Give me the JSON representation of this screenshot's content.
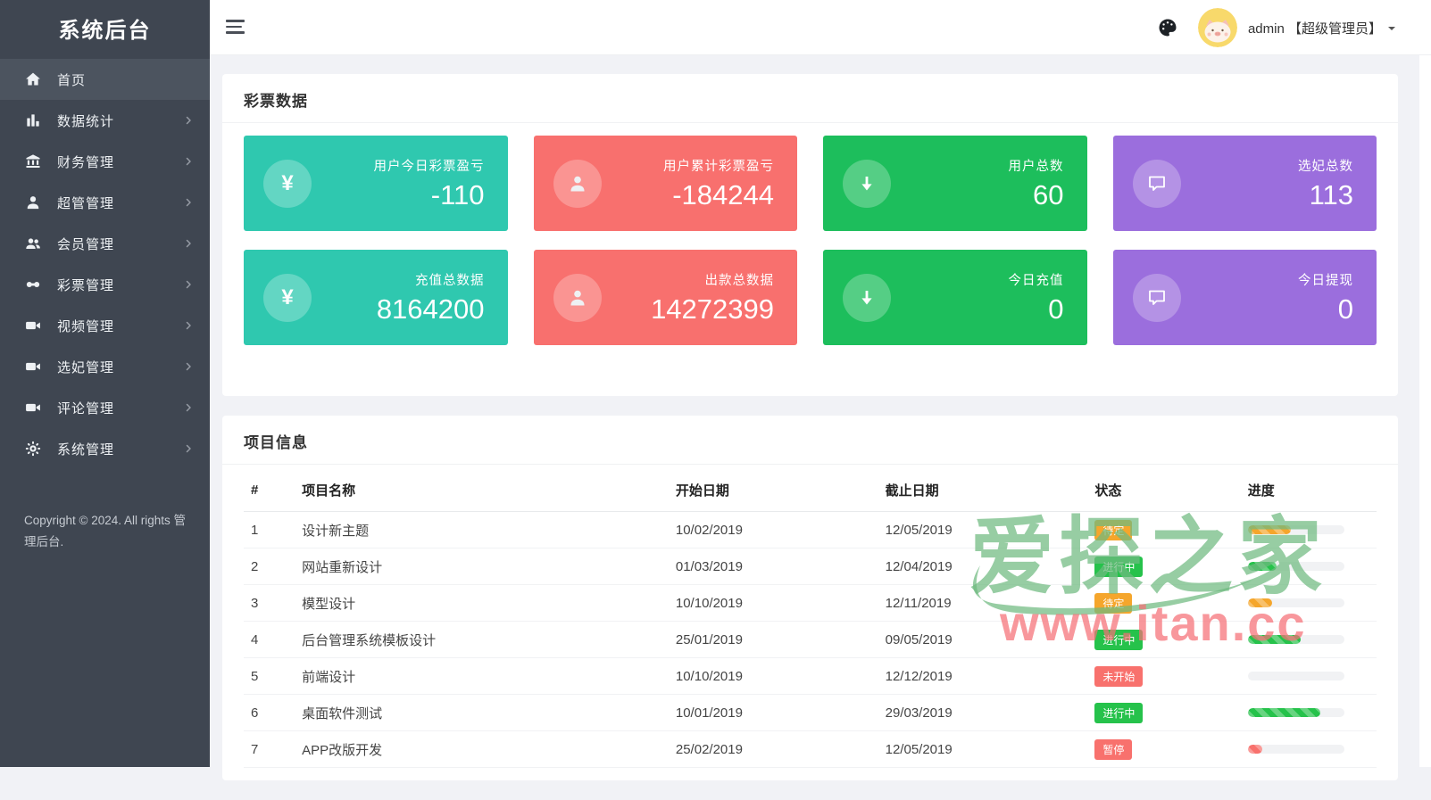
{
  "app": {
    "title": "系统后台"
  },
  "topbar": {
    "user_label": "admin 【超级管理员】",
    "menu_icon": "hamburger",
    "theme_icon": "palette"
  },
  "sidebar": {
    "items": [
      {
        "key": "home",
        "label": "首页",
        "icon": "home",
        "active": true,
        "has_children": false
      },
      {
        "key": "stats",
        "label": "数据统计",
        "icon": "chart",
        "active": false,
        "has_children": true
      },
      {
        "key": "finance",
        "label": "财务管理",
        "icon": "bank",
        "active": false,
        "has_children": true
      },
      {
        "key": "super-admin",
        "label": "超管管理",
        "icon": "user",
        "active": false,
        "has_children": true
      },
      {
        "key": "members",
        "label": "会员管理",
        "icon": "users",
        "active": false,
        "has_children": true
      },
      {
        "key": "lottery",
        "label": "彩票管理",
        "icon": "gamepad",
        "active": false,
        "has_children": true
      },
      {
        "key": "video",
        "label": "视频管理",
        "icon": "video",
        "active": false,
        "has_children": true
      },
      {
        "key": "consort",
        "label": "选妃管理",
        "icon": "video",
        "active": false,
        "has_children": true
      },
      {
        "key": "comments",
        "label": "评论管理",
        "icon": "video",
        "active": false,
        "has_children": true
      },
      {
        "key": "system",
        "label": "系统管理",
        "icon": "gear",
        "active": false,
        "has_children": true
      }
    ],
    "copyright": "Copyright © 2024. All rights 管理后台."
  },
  "lottery_panel": {
    "title": "彩票数据",
    "cards": [
      {
        "key": "today-pnl",
        "label": "用户今日彩票盈亏",
        "value": "-110",
        "color": "#2fc8af",
        "icon": "yen"
      },
      {
        "key": "total-pnl",
        "label": "用户累计彩票盈亏",
        "value": "-184244",
        "color": "#f8706e",
        "icon": "user"
      },
      {
        "key": "user-count",
        "label": "用户总数",
        "value": "60",
        "color": "#1dbe5c",
        "icon": "arrowdown"
      },
      {
        "key": "consort-count",
        "label": "选妃总数",
        "value": "113",
        "color": "#9b6edd",
        "icon": "chat"
      },
      {
        "key": "recharge-total",
        "label": "充值总数据",
        "value": "8164200",
        "color": "#2fc8af",
        "icon": "yen"
      },
      {
        "key": "payout-total",
        "label": "出款总数据",
        "value": "14272399",
        "color": "#f8706e",
        "icon": "user"
      },
      {
        "key": "today-recharge",
        "label": "今日充值",
        "value": "0",
        "color": "#1dbe5c",
        "icon": "arrowdown"
      },
      {
        "key": "today-withdraw",
        "label": "今日提现",
        "value": "0",
        "color": "#9b6edd",
        "icon": "chat"
      }
    ]
  },
  "projects": {
    "title": "项目信息",
    "columns": [
      "#",
      "项目名称",
      "开始日期",
      "截止日期",
      "状态",
      "进度"
    ],
    "rows": [
      {
        "num": "1",
        "name": "设计新主题",
        "start": "10/02/2019",
        "end": "12/05/2019",
        "status": "待定",
        "status_color": "#f5a62c",
        "progress": 45,
        "progress_color": "#f5a62c"
      },
      {
        "num": "2",
        "name": "网站重新设计",
        "start": "01/03/2019",
        "end": "12/04/2019",
        "status": "进行中",
        "status_color": "#26c24b",
        "progress": 30,
        "progress_color": "#26c24b"
      },
      {
        "num": "3",
        "name": "模型设计",
        "start": "10/10/2019",
        "end": "12/11/2019",
        "status": "待定",
        "status_color": "#f5a62c",
        "progress": 25,
        "progress_color": "#f5a62c"
      },
      {
        "num": "4",
        "name": "后台管理系统模板设计",
        "start": "25/01/2019",
        "end": "09/05/2019",
        "status": "进行中",
        "status_color": "#26c24b",
        "progress": 55,
        "progress_color": "#26c24b"
      },
      {
        "num": "5",
        "name": "前端设计",
        "start": "10/10/2019",
        "end": "12/12/2019",
        "status": "未开始",
        "status_color": "#f8716d",
        "progress": 0,
        "progress_color": "#f8716d"
      },
      {
        "num": "6",
        "name": "桌面软件测试",
        "start": "10/01/2019",
        "end": "29/03/2019",
        "status": "进行中",
        "status_color": "#26c24b",
        "progress": 75,
        "progress_color": "#26c24b"
      },
      {
        "num": "7",
        "name": "APP改版开发",
        "start": "25/02/2019",
        "end": "12/05/2019",
        "status": "暂停",
        "status_color": "#f8716d",
        "progress": 15,
        "progress_color": "#f8716d"
      }
    ]
  },
  "watermark": {
    "logo_text": "爱探之家",
    "url_text": "www.itan.cc",
    "logo_color": "#6fba80",
    "url_color": "#f67076"
  }
}
